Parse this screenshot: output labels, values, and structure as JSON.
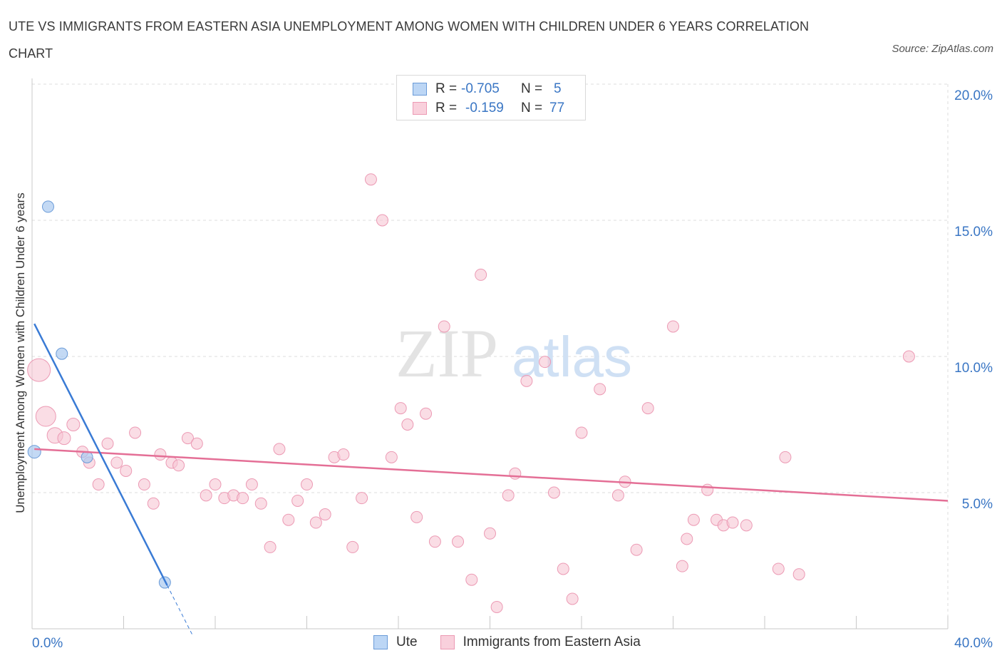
{
  "title": "UTE VS IMMIGRANTS FROM EASTERN ASIA UNEMPLOYMENT AMONG WOMEN WITH CHILDREN UNDER 6 YEARS CORRELATION CHART",
  "source": "Source: ZipAtlas.com",
  "watermark": {
    "zip": "ZIP",
    "atlas": "atlas"
  },
  "legend": {
    "ute": {
      "r_label": "R =",
      "r_value": "-0.705",
      "n_label": "N =",
      "n_value": "5"
    },
    "imm": {
      "r_label": "R =",
      "r_value": "-0.159",
      "n_label": "N =",
      "n_value": "77"
    }
  },
  "bottom_legend": {
    "ute": "Ute",
    "imm": "Immigrants from Eastern Asia"
  },
  "colors": {
    "ute_fill": "#aac9f0",
    "ute_stroke": "#6a9bd8",
    "ute_line": "#3a7bd5",
    "imm_fill": "#f7c6d4",
    "imm_stroke": "#ec9ab4",
    "imm_line": "#e46f96",
    "grid": "#dddddd",
    "tick_text": "#3a76c4"
  },
  "chart_data": {
    "type": "scatter",
    "title": "UTE VS IMMIGRANTS FROM EASTERN ASIA UNEMPLOYMENT AMONG WOMEN WITH CHILDREN UNDER 6 YEARS CORRELATION CHART",
    "xlabel": "",
    "ylabel": "Unemployment Among Women with Children Under 6 years",
    "xlim": [
      0,
      40
    ],
    "ylim": [
      0,
      20
    ],
    "x_tick_labels": [
      "0.0%",
      "40.0%"
    ],
    "y_ticks": [
      5,
      10,
      15,
      20
    ],
    "y_tick_labels": [
      "5.0%",
      "10.0%",
      "15.0%",
      "20.0%"
    ],
    "grid": true,
    "series": [
      {
        "name": "Ute",
        "points": [
          [
            0.1,
            6.5,
            9
          ],
          [
            0.7,
            15.5,
            8
          ],
          [
            1.3,
            10.1,
            8
          ],
          [
            2.4,
            6.3,
            8
          ],
          [
            5.8,
            1.7,
            8
          ]
        ],
        "trend": {
          "x0": 0.1,
          "y0": 11.2,
          "x1": 5.9,
          "y1": 1.6,
          "dash_to_x": 7.0
        }
      },
      {
        "name": "Immigrants from Eastern Asia",
        "points": [
          [
            0.3,
            9.5,
            16
          ],
          [
            0.6,
            7.8,
            14
          ],
          [
            1.0,
            7.1,
            11
          ],
          [
            1.4,
            7.0,
            9
          ],
          [
            1.8,
            7.5,
            9
          ],
          [
            2.2,
            6.5,
            8
          ],
          [
            2.5,
            6.1,
            8
          ],
          [
            2.9,
            5.3,
            8
          ],
          [
            3.3,
            6.8,
            8
          ],
          [
            3.7,
            6.1,
            8
          ],
          [
            4.1,
            5.8,
            8
          ],
          [
            4.5,
            7.2,
            8
          ],
          [
            4.9,
            5.3,
            8
          ],
          [
            5.3,
            4.6,
            8
          ],
          [
            5.6,
            6.4,
            8
          ],
          [
            6.1,
            6.1,
            8
          ],
          [
            6.4,
            6.0,
            8
          ],
          [
            6.8,
            7.0,
            8
          ],
          [
            7.2,
            6.8,
            8
          ],
          [
            7.6,
            4.9,
            8
          ],
          [
            8.0,
            5.3,
            8
          ],
          [
            8.4,
            4.8,
            8
          ],
          [
            8.8,
            4.9,
            8
          ],
          [
            9.2,
            4.8,
            8
          ],
          [
            9.6,
            5.3,
            8
          ],
          [
            10.0,
            4.6,
            8
          ],
          [
            10.4,
            3.0,
            8
          ],
          [
            10.8,
            6.6,
            8
          ],
          [
            11.2,
            4.0,
            8
          ],
          [
            11.6,
            4.7,
            8
          ],
          [
            12.0,
            5.3,
            8
          ],
          [
            12.4,
            3.9,
            8
          ],
          [
            12.8,
            4.2,
            8
          ],
          [
            13.2,
            6.3,
            8
          ],
          [
            13.6,
            6.4,
            8
          ],
          [
            14.0,
            3.0,
            8
          ],
          [
            14.4,
            4.8,
            8
          ],
          [
            14.8,
            16.5,
            8
          ],
          [
            15.3,
            15.0,
            8
          ],
          [
            15.7,
            6.3,
            8
          ],
          [
            16.1,
            8.1,
            8
          ],
          [
            16.4,
            7.5,
            8
          ],
          [
            16.8,
            4.1,
            8
          ],
          [
            17.2,
            7.9,
            8
          ],
          [
            17.6,
            3.2,
            8
          ],
          [
            18.0,
            11.1,
            8
          ],
          [
            18.6,
            3.2,
            8
          ],
          [
            19.2,
            1.8,
            8
          ],
          [
            19.6,
            13.0,
            8
          ],
          [
            20.0,
            3.5,
            8
          ],
          [
            20.3,
            0.8,
            8
          ],
          [
            20.8,
            4.9,
            8
          ],
          [
            21.1,
            5.7,
            8
          ],
          [
            21.6,
            9.1,
            8
          ],
          [
            22.4,
            9.8,
            8
          ],
          [
            22.8,
            5.0,
            8
          ],
          [
            23.2,
            2.2,
            8
          ],
          [
            23.6,
            1.1,
            8
          ],
          [
            24.0,
            7.2,
            8
          ],
          [
            24.8,
            8.8,
            8
          ],
          [
            25.6,
            4.9,
            8
          ],
          [
            25.9,
            5.4,
            8
          ],
          [
            26.4,
            2.9,
            8
          ],
          [
            26.9,
            8.1,
            8
          ],
          [
            28.0,
            11.1,
            8
          ],
          [
            28.4,
            2.3,
            8
          ],
          [
            28.6,
            3.3,
            8
          ],
          [
            28.9,
            4.0,
            8
          ],
          [
            29.5,
            5.1,
            8
          ],
          [
            29.9,
            4.0,
            8
          ],
          [
            30.2,
            3.8,
            8
          ],
          [
            30.6,
            3.9,
            8
          ],
          [
            31.2,
            3.8,
            8
          ],
          [
            32.6,
            2.2,
            8
          ],
          [
            32.9,
            6.3,
            8
          ],
          [
            33.5,
            2.0,
            8
          ],
          [
            38.3,
            10.0,
            8
          ]
        ],
        "trend": {
          "x0": 0.1,
          "y0": 6.6,
          "x1": 40.0,
          "y1": 4.7
        }
      }
    ]
  }
}
